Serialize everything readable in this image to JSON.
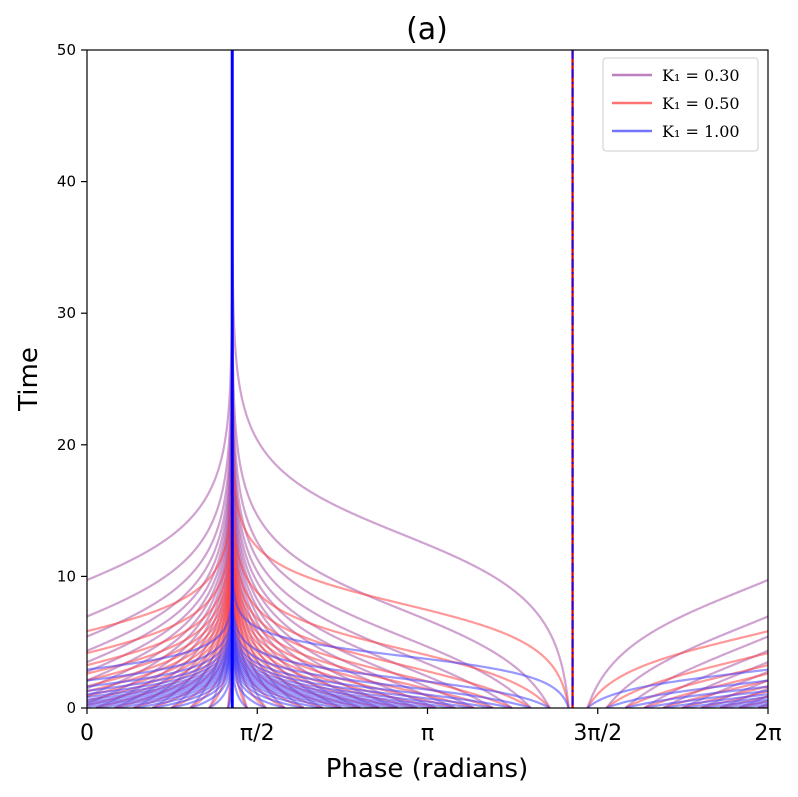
{
  "chart_data": {
    "type": "line",
    "title": "(a)",
    "xlabel": "Phase (radians)",
    "ylabel": "Time",
    "xlim": [
      0,
      6.2832
    ],
    "ylim": [
      0,
      50
    ],
    "grid": false,
    "legend_position": "top-right",
    "x_ticks": [
      {
        "value": 0,
        "label": "0"
      },
      {
        "value": 1.5708,
        "label": "π/2"
      },
      {
        "value": 3.1416,
        "label": "π"
      },
      {
        "value": 4.7124,
        "label": "3π/2"
      },
      {
        "value": 6.2832,
        "label": "2π"
      }
    ],
    "y_ticks": [
      {
        "value": 0,
        "label": "0"
      },
      {
        "value": 10,
        "label": "10"
      },
      {
        "value": 20,
        "label": "20"
      },
      {
        "value": 30,
        "label": "30"
      },
      {
        "value": 40,
        "label": "40"
      },
      {
        "value": 50,
        "label": "50"
      }
    ],
    "stable_phase": 1.34,
    "unstable_phase": 4.48,
    "series": [
      {
        "name": "K₁ = 0.30",
        "legend_label": "K₁ = 0.30",
        "K": 0.3,
        "color": "#aa55aa"
      },
      {
        "name": "K₁ = 0.50",
        "legend_label": "K₁ = 0.50",
        "K": 0.5,
        "color": "#ff4444"
      },
      {
        "name": "K₁ = 1.00",
        "legend_label": "K₁ = 1.00",
        "K": 1.0,
        "color": "#4444ff"
      }
    ]
  }
}
